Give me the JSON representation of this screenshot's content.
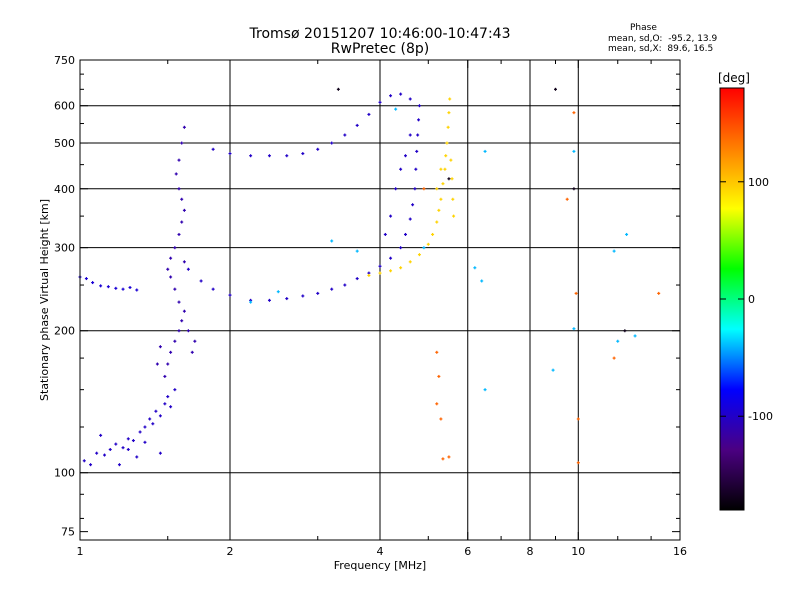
{
  "title_line1": "Tromsø 20151207 10:46:00-10:47:43",
  "title_line2": "RwPretec (8p)",
  "phase_box": {
    "title": "Phase",
    "stat_o": "mean, sd,O:  -95.2, 13.9",
    "stat_x": "mean, sd,X:  89.6, 16.5"
  },
  "colorbar": {
    "label": "[deg]",
    "ticks": [
      {
        "v": 100,
        "label": "100"
      },
      {
        "v": 0,
        "label": "0"
      },
      {
        "v": -100,
        "label": "-100"
      }
    ],
    "range": [
      -180,
      180
    ],
    "colors": [
      "#000000",
      "#4b0082",
      "#0000ff",
      "#00ffff",
      "#00ff00",
      "#ffff00",
      "#ff8000",
      "#ff0000"
    ]
  },
  "chart_data": {
    "type": "scatter",
    "xlabel": "Frequency [MHz]",
    "ylabel": "Stationary phase Virtual Height [km]",
    "xscale": "log",
    "yscale": "log",
    "xlim": [
      1,
      16
    ],
    "ylim": [
      72,
      750
    ],
    "xticks": [
      {
        "v": 1,
        "label": "1"
      },
      {
        "v": 2,
        "label": "2"
      },
      {
        "v": 4,
        "label": "4"
      },
      {
        "v": 6,
        "label": "6"
      },
      {
        "v": 8,
        "label": "8"
      },
      {
        "v": 10,
        "label": "10"
      },
      {
        "v": 16,
        "label": "16"
      }
    ],
    "xgrid": [
      2,
      4,
      6,
      8,
      10
    ],
    "yticks": [
      {
        "v": 75,
        "label": "75"
      },
      {
        "v": 100,
        "label": "100"
      },
      {
        "v": 200,
        "label": "200"
      },
      {
        "v": 300,
        "label": "300"
      },
      {
        "v": 400,
        "label": "400"
      },
      {
        "v": 500,
        "label": "500"
      },
      {
        "v": 600,
        "label": "600"
      },
      {
        "v": 750,
        "label": "750"
      }
    ],
    "ygrid": [
      100,
      200,
      300,
      400,
      500,
      600
    ],
    "xminor": [
      1.5,
      3,
      5,
      7,
      9,
      12,
      14
    ],
    "yminor": [
      80,
      90,
      125,
      150,
      175,
      250,
      350,
      450,
      550,
      650,
      700
    ],
    "series": [
      {
        "role": "E-layer low cluster",
        "phase": -100,
        "points": [
          [
            1.02,
            106
          ],
          [
            1.05,
            104
          ],
          [
            1.08,
            110
          ],
          [
            1.12,
            109
          ],
          [
            1.15,
            112
          ],
          [
            1.18,
            115
          ],
          [
            1.22,
            113
          ],
          [
            1.25,
            118
          ],
          [
            1.28,
            117
          ],
          [
            1.32,
            122
          ],
          [
            1.35,
            125
          ],
          [
            1.38,
            130
          ],
          [
            1.4,
            127
          ],
          [
            1.42,
            135
          ],
          [
            1.45,
            132
          ],
          [
            1.48,
            140
          ],
          [
            1.5,
            145
          ],
          [
            1.52,
            138
          ],
          [
            1.55,
            150
          ],
          [
            1.1,
            120
          ],
          [
            1.2,
            104
          ],
          [
            1.3,
            108
          ],
          [
            1.45,
            110
          ],
          [
            1.35,
            116
          ],
          [
            1.25,
            112
          ]
        ]
      },
      {
        "role": "F1 rise near 1.5 MHz",
        "phase": -110,
        "points": [
          [
            1.48,
            160
          ],
          [
            1.5,
            170
          ],
          [
            1.52,
            180
          ],
          [
            1.55,
            190
          ],
          [
            1.58,
            200
          ],
          [
            1.6,
            210
          ],
          [
            1.62,
            220
          ],
          [
            1.58,
            230
          ],
          [
            1.55,
            245
          ],
          [
            1.52,
            260
          ],
          [
            1.5,
            270
          ],
          [
            1.52,
            285
          ],
          [
            1.55,
            300
          ],
          [
            1.58,
            320
          ],
          [
            1.6,
            340
          ],
          [
            1.62,
            360
          ],
          [
            1.6,
            380
          ],
          [
            1.58,
            400
          ],
          [
            1.56,
            430
          ],
          [
            1.58,
            460
          ],
          [
            1.6,
            500
          ],
          [
            1.62,
            540
          ],
          [
            1.65,
            200
          ],
          [
            1.68,
            180
          ],
          [
            1.7,
            190
          ],
          [
            1.45,
            185
          ],
          [
            1.43,
            170
          ],
          [
            1.62,
            280
          ]
        ]
      },
      {
        "role": "Es trace left",
        "phase": -95,
        "points": [
          [
            1.0,
            260
          ],
          [
            1.03,
            258
          ],
          [
            1.06,
            253
          ],
          [
            1.1,
            249
          ],
          [
            1.14,
            248
          ],
          [
            1.18,
            246
          ],
          [
            1.22,
            245
          ],
          [
            1.26,
            247
          ],
          [
            1.3,
            244
          ]
        ]
      },
      {
        "role": "O-mode F trace",
        "phase": -100,
        "points": [
          [
            1.65,
            270
          ],
          [
            1.75,
            255
          ],
          [
            1.85,
            245
          ],
          [
            2.0,
            238
          ],
          [
            2.2,
            232
          ],
          [
            2.4,
            232
          ],
          [
            2.6,
            234
          ],
          [
            2.8,
            237
          ],
          [
            3.0,
            240
          ],
          [
            3.2,
            245
          ],
          [
            3.4,
            250
          ],
          [
            3.6,
            258
          ],
          [
            3.8,
            265
          ],
          [
            4.0,
            274
          ],
          [
            4.2,
            285
          ],
          [
            4.4,
            300
          ],
          [
            4.5,
            320
          ],
          [
            4.6,
            345
          ],
          [
            4.65,
            370
          ],
          [
            4.7,
            400
          ],
          [
            4.72,
            440
          ],
          [
            4.74,
            480
          ],
          [
            4.76,
            520
          ],
          [
            4.78,
            560
          ],
          [
            4.8,
            600
          ],
          [
            4.6,
            520
          ],
          [
            4.5,
            470
          ],
          [
            4.4,
            440
          ],
          [
            4.3,
            400
          ],
          [
            4.2,
            350
          ],
          [
            4.1,
            320
          ]
        ]
      },
      {
        "role": "upper F trace",
        "phase": -100,
        "points": [
          [
            1.85,
            485
          ],
          [
            2.0,
            475
          ],
          [
            2.2,
            470
          ],
          [
            2.4,
            470
          ],
          [
            2.6,
            470
          ],
          [
            2.8,
            475
          ],
          [
            3.0,
            485
          ],
          [
            3.2,
            500
          ],
          [
            3.4,
            520
          ],
          [
            3.6,
            545
          ],
          [
            3.8,
            575
          ],
          [
            4.0,
            610
          ],
          [
            4.2,
            630
          ],
          [
            4.4,
            635
          ],
          [
            4.6,
            620
          ]
        ]
      },
      {
        "role": "X-mode trace",
        "phase": 95,
        "points": [
          [
            3.8,
            262
          ],
          [
            4.0,
            265
          ],
          [
            4.2,
            268
          ],
          [
            4.4,
            272
          ],
          [
            4.6,
            280
          ],
          [
            4.8,
            290
          ],
          [
            5.0,
            305
          ],
          [
            5.1,
            320
          ],
          [
            5.2,
            340
          ],
          [
            5.25,
            360
          ],
          [
            5.3,
            380
          ],
          [
            5.35,
            410
          ],
          [
            5.4,
            440
          ],
          [
            5.42,
            470
          ],
          [
            5.45,
            500
          ],
          [
            5.48,
            540
          ],
          [
            5.5,
            580
          ],
          [
            5.52,
            620
          ],
          [
            5.3,
            440
          ],
          [
            5.2,
            400
          ],
          [
            5.55,
            460
          ],
          [
            5.58,
            420
          ],
          [
            5.6,
            380
          ],
          [
            5.62,
            350
          ]
        ]
      },
      {
        "role": "scattered",
        "phase": -40,
        "points": [
          [
            2.2,
            230
          ],
          [
            2.5,
            242
          ],
          [
            3.2,
            310
          ],
          [
            3.6,
            295
          ],
          [
            4.3,
            590
          ],
          [
            4.9,
            300
          ],
          [
            6.2,
            272
          ],
          [
            6.4,
            255
          ],
          [
            6.5,
            150
          ],
          [
            6.5,
            480
          ],
          [
            9.8,
            480
          ],
          [
            12,
            190
          ],
          [
            12.5,
            320
          ],
          [
            13,
            195
          ],
          [
            11.8,
            295
          ],
          [
            8.9,
            165
          ],
          [
            9.8,
            202
          ]
        ]
      },
      {
        "role": "scattered warm",
        "phase": 140,
        "points": [
          [
            5.2,
            180
          ],
          [
            5.25,
            160
          ],
          [
            5.3,
            130
          ],
          [
            5.35,
            107
          ],
          [
            5.2,
            140
          ],
          [
            9.8,
            580
          ],
          [
            9.9,
            240
          ],
          [
            10.0,
            105
          ],
          [
            10.0,
            130
          ],
          [
            11.8,
            175
          ],
          [
            14.5,
            240
          ],
          [
            4.9,
            400
          ],
          [
            5.5,
            108
          ],
          [
            9.5,
            380
          ]
        ]
      },
      {
        "role": "scattered cool",
        "phase": -170,
        "points": [
          [
            3.3,
            650
          ],
          [
            9.0,
            650
          ],
          [
            9.8,
            400
          ],
          [
            5.5,
            420
          ],
          [
            12.4,
            200
          ]
        ]
      }
    ]
  }
}
